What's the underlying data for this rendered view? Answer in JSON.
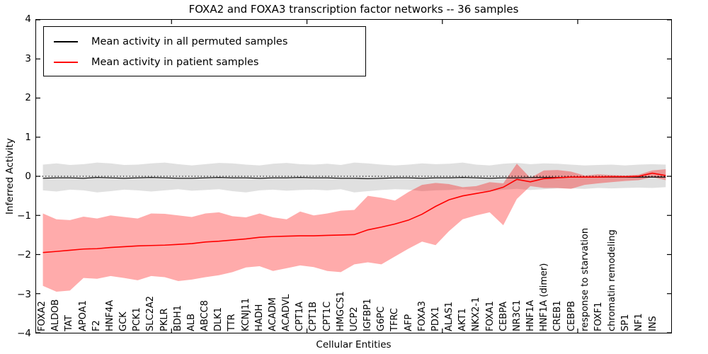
{
  "title": "FOXA2 and FOXA3 transcription factor networks -- 36 samples",
  "axes": {
    "ylabel": "Inferred Activity",
    "xlabel": "Cellular Entities",
    "yticks": [
      {
        "label": "4",
        "value": 4
      },
      {
        "label": "3",
        "value": 3
      },
      {
        "label": "2",
        "value": 2
      },
      {
        "label": "1",
        "value": 1
      },
      {
        "label": "0",
        "value": 0
      },
      {
        "label": "−1",
        "value": -1
      },
      {
        "label": "−2",
        "value": -2
      },
      {
        "label": "−3",
        "value": -3
      },
      {
        "label": "−4",
        "value": -4
      }
    ]
  },
  "legend": {
    "items": [
      {
        "label": "Mean activity in all permuted samples",
        "color": "#000000"
      },
      {
        "label": "Mean activity in patient samples",
        "color": "#ff0000"
      }
    ]
  },
  "colors": {
    "permuted_line": "#000000",
    "patient_line": "#ff0000",
    "permuted_band": "rgba(0,0,0,0.12)",
    "patient_band": "rgba(255,0,0,0.33)",
    "zero_line": "#000000"
  },
  "chart_data": {
    "type": "line",
    "title": "FOXA2 and FOXA3 transcription factor networks -- 36 samples",
    "xlabel": "Cellular Entities",
    "ylabel": "Inferred Activity",
    "ylim": [
      -4,
      4
    ],
    "xlim": [
      0,
      46.9
    ],
    "xticks_unlabeled": [
      10,
      20,
      30,
      40
    ],
    "grid": false,
    "legend_position": "upper left",
    "zero_line": {
      "y": 0,
      "style": "dotted",
      "color": "#000000"
    },
    "note": "shaded bands reach the right axis; final array value is the unlabeled right-edge vertex",
    "categories": [
      "FOXA2",
      "ALDOB",
      "TAT",
      "APOA1",
      "F2",
      "HNF4A",
      "GCK",
      "PCK1",
      "SLC2A2",
      "PKLR",
      "BDH1",
      "ALB",
      "ABCC8",
      "DLK1",
      "TTR",
      "KCNJ11",
      "HADH",
      "ACADM",
      "ACADVL",
      "CPT1A",
      "CPT1B",
      "CPT1C",
      "HMGCS1",
      "UCP2",
      "IGFBP1",
      "G6PC",
      "TFRC",
      "AFP",
      "FOXA3",
      "PDX1",
      "ALAS1",
      "AKT1",
      "NKX2-1",
      "FOXA1",
      "CEBPA",
      "NR3C1",
      "HNF1A",
      "HNF1A (dimer)",
      "CREB1",
      "CEBPB",
      "response to starvation",
      "FOXF1",
      "chromatin remodeling",
      "SP1",
      "NF1",
      "INS"
    ],
    "series": [
      {
        "name": "Mean activity in all permuted samples",
        "color": "#000000",
        "line_width": 1.2,
        "band_color": "rgba(0,0,0,0.12)",
        "values": [
          -0.05,
          -0.04,
          -0.04,
          -0.05,
          -0.03,
          -0.04,
          -0.05,
          -0.04,
          -0.03,
          -0.04,
          -0.05,
          -0.05,
          -0.04,
          -0.03,
          -0.04,
          -0.04,
          -0.05,
          -0.04,
          -0.04,
          -0.03,
          -0.04,
          -0.04,
          -0.05,
          -0.05,
          -0.06,
          -0.05,
          -0.04,
          -0.04,
          -0.05,
          -0.04,
          -0.04,
          -0.03,
          -0.04,
          -0.05,
          -0.04,
          -0.04,
          -0.03,
          -0.03,
          -0.03,
          -0.02,
          -0.02,
          -0.02,
          -0.02,
          -0.02,
          -0.02,
          -0.02,
          -0.02
        ],
        "band_upper": [
          0.3,
          0.33,
          0.29,
          0.31,
          0.35,
          0.33,
          0.29,
          0.3,
          0.33,
          0.35,
          0.31,
          0.28,
          0.31,
          0.34,
          0.33,
          0.3,
          0.28,
          0.32,
          0.34,
          0.31,
          0.3,
          0.32,
          0.29,
          0.35,
          0.33,
          0.3,
          0.28,
          0.3,
          0.33,
          0.31,
          0.32,
          0.35,
          0.3,
          0.28,
          0.32,
          0.34,
          0.31,
          0.33,
          0.32,
          0.3,
          0.28,
          0.29,
          0.3,
          0.28,
          0.3,
          0.31,
          0.3
        ],
        "band_lower": [
          -0.36,
          -0.39,
          -0.34,
          -0.36,
          -0.41,
          -0.38,
          -0.34,
          -0.36,
          -0.39,
          -0.36,
          -0.33,
          -0.37,
          -0.35,
          -0.33,
          -0.38,
          -0.41,
          -0.36,
          -0.34,
          -0.37,
          -0.35,
          -0.34,
          -0.36,
          -0.33,
          -0.41,
          -0.38,
          -0.35,
          -0.33,
          -0.34,
          -0.38,
          -0.36,
          -0.35,
          -0.33,
          -0.36,
          -0.39,
          -0.34,
          -0.32,
          -0.35,
          -0.33,
          -0.31,
          -0.31,
          -0.32,
          -0.3,
          -0.31,
          -0.3,
          -0.29,
          -0.3,
          -0.28
        ]
      },
      {
        "name": "Mean activity in patient samples",
        "color": "#ff0000",
        "line_width": 1.6,
        "band_color": "rgba(255,0,0,0.33)",
        "values": [
          -1.95,
          -1.92,
          -1.89,
          -1.86,
          -1.85,
          -1.82,
          -1.8,
          -1.78,
          -1.77,
          -1.76,
          -1.74,
          -1.72,
          -1.68,
          -1.66,
          -1.63,
          -1.6,
          -1.56,
          -1.54,
          -1.53,
          -1.52,
          -1.52,
          -1.51,
          -1.5,
          -1.49,
          -1.37,
          -1.3,
          -1.22,
          -1.12,
          -0.97,
          -0.77,
          -0.6,
          -0.5,
          -0.44,
          -0.38,
          -0.28,
          -0.08,
          -0.14,
          -0.06,
          -0.04,
          -0.02,
          -0.02,
          -0.02,
          -0.01,
          -0.01,
          0.0,
          0.08,
          0.02
        ],
        "band_upper": [
          -0.95,
          -1.1,
          -1.12,
          -1.03,
          -1.08,
          -1.0,
          -1.04,
          -1.08,
          -0.95,
          -0.96,
          -1.0,
          -1.04,
          -0.95,
          -0.92,
          -1.02,
          -1.05,
          -0.95,
          -1.05,
          -1.1,
          -0.9,
          -1.0,
          -0.95,
          -0.88,
          -0.86,
          -0.5,
          -0.55,
          -0.62,
          -0.4,
          -0.22,
          -0.17,
          -0.2,
          -0.28,
          -0.25,
          -0.15,
          -0.18,
          0.32,
          -0.04,
          0.15,
          0.16,
          0.12,
          0.02,
          0.05,
          0.03,
          0.02,
          0.04,
          0.15,
          0.18
        ],
        "band_lower": [
          -2.8,
          -2.95,
          -2.92,
          -2.6,
          -2.62,
          -2.55,
          -2.6,
          -2.66,
          -2.55,
          -2.58,
          -2.68,
          -2.64,
          -2.58,
          -2.53,
          -2.45,
          -2.33,
          -2.3,
          -2.42,
          -2.35,
          -2.28,
          -2.32,
          -2.42,
          -2.45,
          -2.25,
          -2.2,
          -2.25,
          -2.05,
          -1.85,
          -1.67,
          -1.76,
          -1.4,
          -1.1,
          -1.0,
          -0.92,
          -1.25,
          -0.58,
          -0.25,
          -0.3,
          -0.3,
          -0.32,
          -0.22,
          -0.18,
          -0.15,
          -0.12,
          -0.1,
          -0.02,
          -0.1
        ]
      }
    ]
  }
}
